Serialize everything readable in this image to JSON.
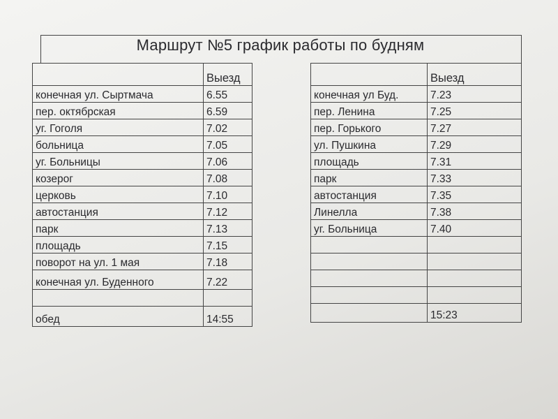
{
  "title": "Маршрут №5   график работы по будням",
  "left": {
    "header": "Выезд",
    "rows": [
      {
        "stop": "конечная  ул. Сыртмача",
        "time": "6.55"
      },
      {
        "stop": "пер. октябрская",
        "time": "6.59"
      },
      {
        "stop": "уг. Гоголя",
        "time": "7.02"
      },
      {
        "stop": "больница",
        "time": "7.05"
      },
      {
        "stop": "уг. Больницы",
        "time": "7.06"
      },
      {
        "stop": "козерог",
        "time": "7.08"
      },
      {
        "stop": "церковь",
        "time": "7.10"
      },
      {
        "stop": "автостанция",
        "time": "7.12"
      },
      {
        "stop": "парк",
        "time": "7.13"
      },
      {
        "stop": "площадь",
        "time": "7.15"
      },
      {
        "stop": "поворот на ул. 1 мая",
        "time": "7.18"
      },
      {
        "stop": "конечная ул. Буденного",
        "time": "7.22"
      }
    ],
    "lunch_label": "обед",
    "lunch_time": "14:55"
  },
  "right": {
    "header": "Выезд",
    "rows": [
      {
        "stop": "конечная  ул Буд.",
        "time": "7.23"
      },
      {
        "stop": "пер. Ленина",
        "time": "7.25"
      },
      {
        "stop": "пер. Горького",
        "time": "7.27"
      },
      {
        "stop": "ул. Пушкина",
        "time": "7.29"
      },
      {
        "stop": "площадь",
        "time": "7.31"
      },
      {
        "stop": "парк",
        "time": "7.33"
      },
      {
        "stop": "автостанция",
        "time": "7.35"
      },
      {
        "stop": "Линелла",
        "time": "7.38"
      },
      {
        "stop": "уг. Больница",
        "time": "7.40"
      }
    ],
    "last_time": "15:23"
  }
}
